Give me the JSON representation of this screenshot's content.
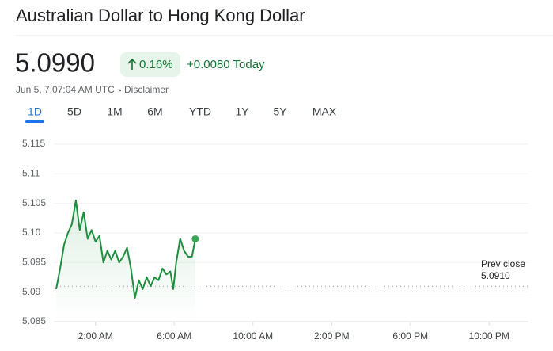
{
  "header": {
    "title": "Australian Dollar to Hong Kong Dollar",
    "price": "5.0990",
    "change_percent": "0.16%",
    "change_amount": "+0.0080 Today",
    "timestamp": "Jun 5, 7:07:04 AM UTC",
    "disclaimer": "Disclaimer"
  },
  "tabs": [
    "1D",
    "5D",
    "1M",
    "6M",
    "YTD",
    "1Y",
    "5Y",
    "MAX"
  ],
  "selected_tab_index": 0,
  "chart_data": {
    "type": "line",
    "color": "#1e8e3e",
    "x": [
      0.0,
      0.2,
      0.4,
      0.6,
      0.8,
      1.0,
      1.2,
      1.4,
      1.6,
      1.8,
      2.0,
      2.2,
      2.4,
      2.6,
      2.8,
      3.0,
      3.2,
      3.4,
      3.6,
      3.8,
      3.9,
      4.0,
      4.2,
      4.4,
      4.6,
      4.8,
      5.0,
      5.2,
      5.4,
      5.6,
      5.8,
      5.95,
      6.1,
      6.3,
      6.5,
      6.7,
      6.9,
      7.07
    ],
    "values": [
      5.0905,
      5.094,
      5.098,
      5.1,
      5.1015,
      5.1055,
      5.1005,
      5.1035,
      5.099,
      5.1005,
      5.0985,
      5.0995,
      5.095,
      5.097,
      5.0955,
      5.097,
      5.095,
      5.096,
      5.0975,
      5.094,
      5.0915,
      5.089,
      5.092,
      5.0905,
      5.0925,
      5.091,
      5.0925,
      5.092,
      5.094,
      5.093,
      5.0935,
      5.0905,
      5.095,
      5.099,
      5.097,
      5.096,
      5.096,
      5.099
    ],
    "xlim": [
      0,
      24
    ],
    "xticks": [
      {
        "value": 2,
        "label": "2:00 AM"
      },
      {
        "value": 6,
        "label": "6:00 AM"
      },
      {
        "value": 10,
        "label": "10:00 AM"
      },
      {
        "value": 14,
        "label": "2:00 PM"
      },
      {
        "value": 18,
        "label": "6:00 PM"
      },
      {
        "value": 22,
        "label": "10:00 PM"
      }
    ],
    "ylim": [
      5.085,
      5.115
    ],
    "yticks": [
      5.085,
      5.09,
      5.095,
      {
        "value": 5.1,
        "label": "5.10"
      },
      5.105,
      5.11,
      5.115
    ],
    "grid": true,
    "reference_line": {
      "label": "Prev close",
      "value": 5.091,
      "value_label": "5.0910"
    }
  }
}
